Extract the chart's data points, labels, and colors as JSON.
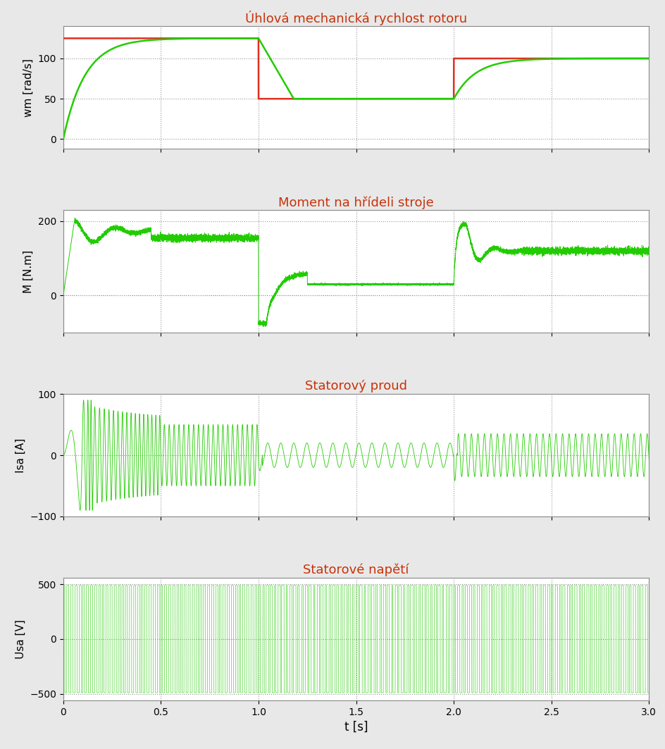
{
  "title1": "Úhlová mechanická rychlost rotoru",
  "title2": "Moment na hřídeli stroje",
  "title3": "Statorový proud",
  "title4": "Statorové napětí",
  "ylabel1": "wm [rad/s]",
  "ylabel2": "M [N.m]",
  "ylabel3": "Isa [A]",
  "ylabel4": "Usa [V]",
  "xlabel": "t [s]",
  "title_color": "#c8320a",
  "green_color": "#22cc00",
  "red_line_color": "#e03020",
  "bg_color": "#e8e8e8",
  "plot_bg": "#ffffff",
  "grid_color": "#999999",
  "xlim": [
    0,
    3
  ],
  "xticks": [
    0,
    0.5,
    1.0,
    1.5,
    2.0,
    2.5,
    3.0
  ],
  "ylim1": [
    -12,
    140
  ],
  "yticks1": [
    0,
    50,
    100
  ],
  "ylim2": [
    -100,
    230
  ],
  "yticks2": [
    0,
    200
  ],
  "ylim3": [
    -100,
    100
  ],
  "yticks3": [
    -100,
    0,
    100
  ],
  "ylim4": [
    -560,
    560
  ],
  "yticks4": [
    -500,
    0,
    500
  ]
}
